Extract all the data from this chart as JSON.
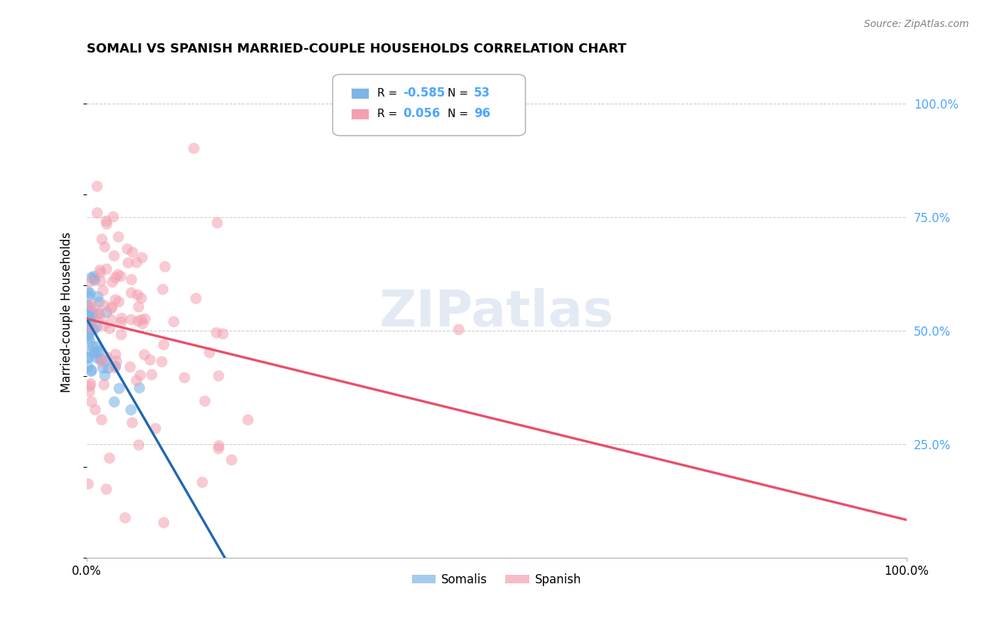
{
  "title": "SOMALI VS SPANISH MARRIED-COUPLE HOUSEHOLDS CORRELATION CHART",
  "source": "Source: ZipAtlas.com",
  "ylabel": "Married-couple Households",
  "watermark": "ZIPatlas",
  "legend_somali_r": "-0.585",
  "legend_somali_n": "53",
  "legend_spanish_r": "0.056",
  "legend_spanish_n": "96",
  "somali_color": "#7EB5E8",
  "spanish_color": "#F4A0B0",
  "somali_line_color": "#2068B0",
  "spanish_line_color": "#E8506A",
  "background_color": "#FFFFFF",
  "grid_color": "#CCCCCC",
  "ytick_color": "#4da6ff",
  "xlim": [
    0.0,
    1.0
  ],
  "ylim": [
    0.0,
    1.08
  ],
  "yticks": [
    0.25,
    0.5,
    0.75,
    1.0
  ],
  "ytick_labels": [
    "25.0%",
    "50.0%",
    "75.0%",
    "100.0%"
  ],
  "xtick_labels": [
    "0.0%",
    "100.0%"
  ]
}
